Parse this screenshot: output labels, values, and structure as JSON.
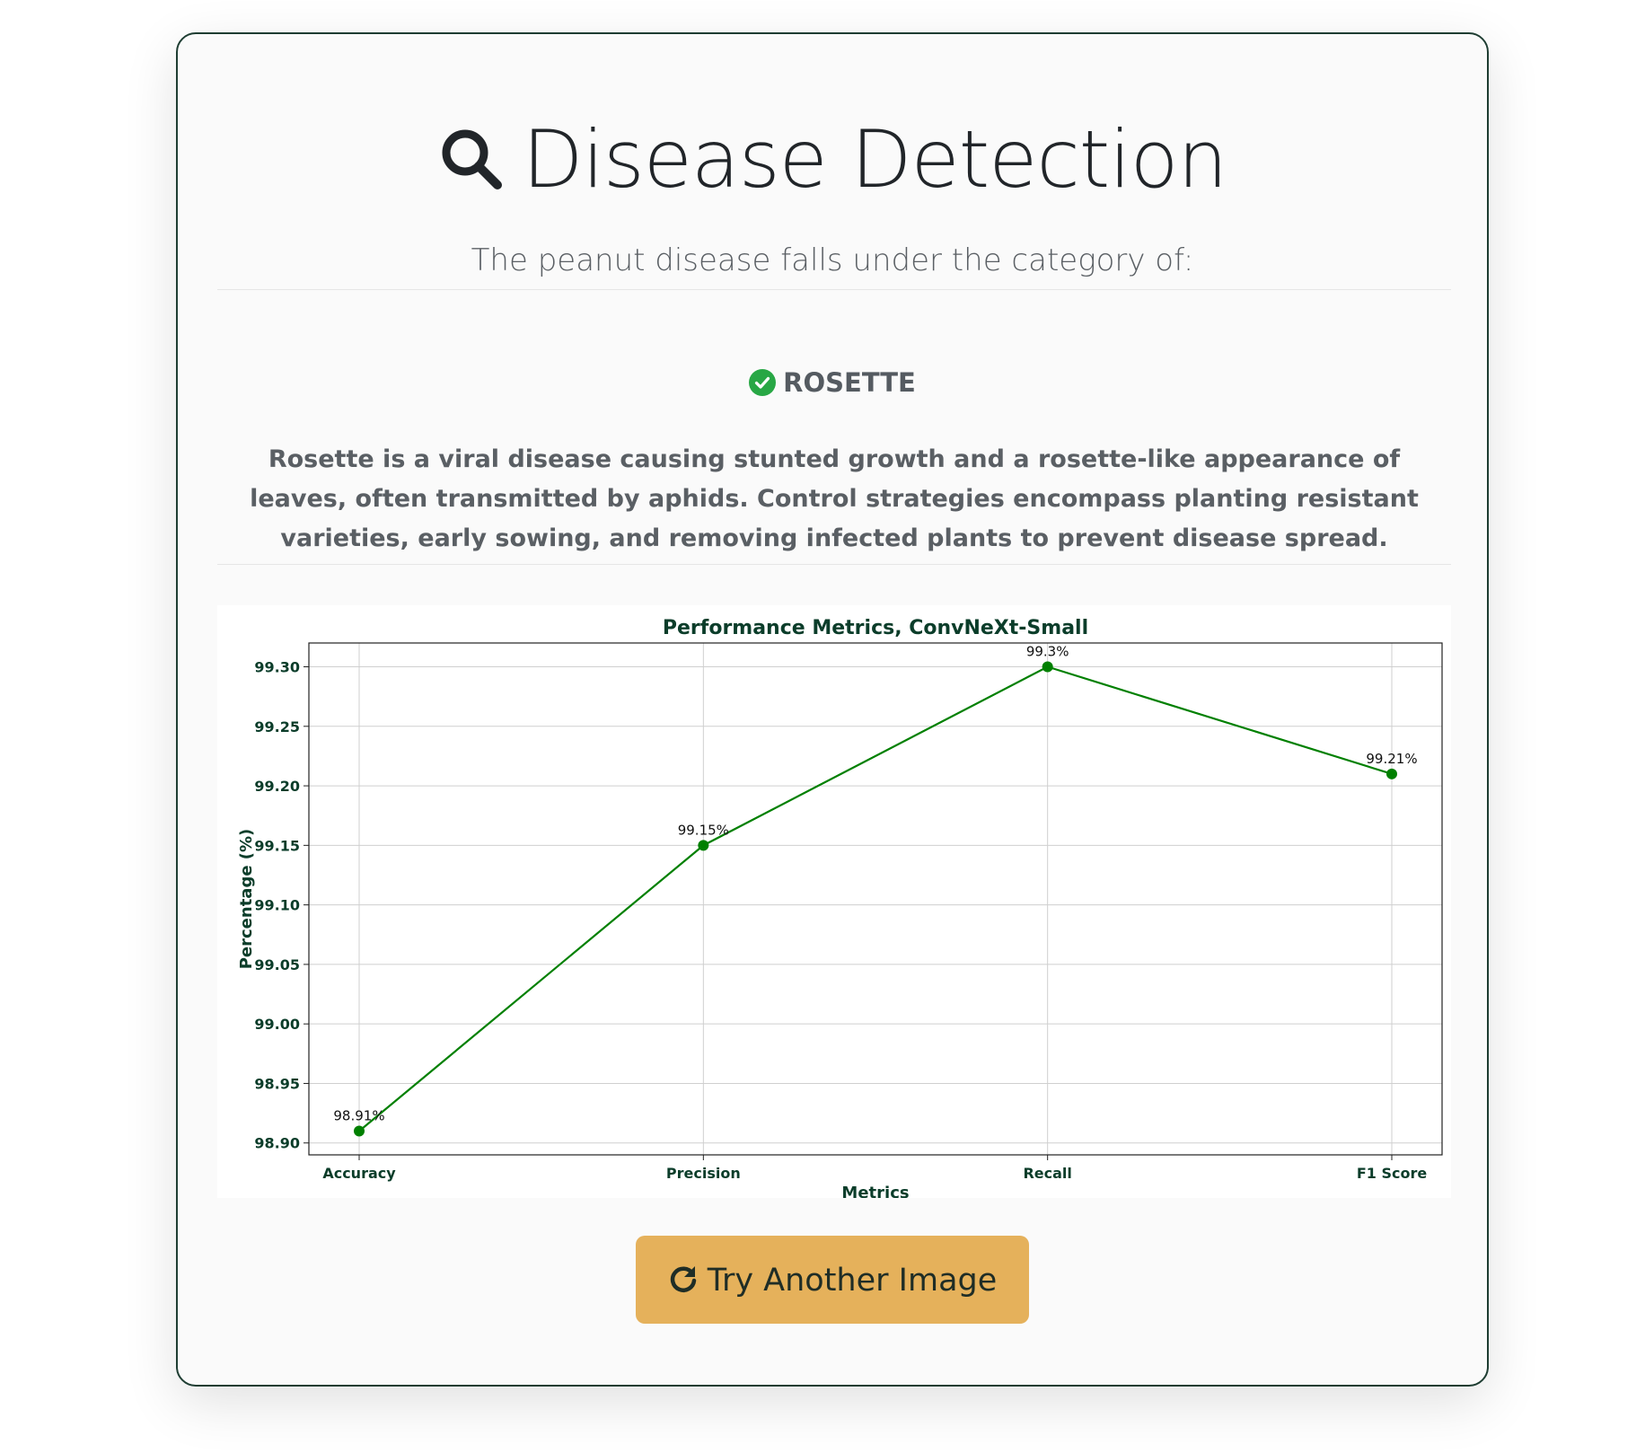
{
  "header": {
    "title": "Disease Detection",
    "title_icon": "search-icon",
    "subtitle": "The peanut disease falls under the category of:"
  },
  "result": {
    "label": "ROSETTE",
    "icon": "check-circle-icon",
    "icon_color": "#28a745",
    "description": "Rosette is a viral disease causing stunted growth and a rosette-like appearance of leaves, often transmitted by aphids. Control strategies encompass planting resistant varieties, early sowing, and removing infected plants to prevent disease spread."
  },
  "chart_data": {
    "type": "line",
    "title": "Performance Metrics, ConvNeXt-Small",
    "xlabel": "Metrics",
    "ylabel": "Percentage (%)",
    "categories": [
      "Accuracy",
      "Precision",
      "Recall",
      "F1 Score"
    ],
    "values": [
      98.91,
      99.15,
      99.3,
      99.21
    ],
    "data_labels": [
      "98.91%",
      "99.15%",
      "99.3%",
      "99.21%"
    ],
    "yticks": [
      "98.90",
      "98.95",
      "99.00",
      "99.05",
      "99.10",
      "99.15",
      "99.20",
      "99.25",
      "99.30"
    ],
    "ylim": [
      98.89,
      99.32
    ],
    "grid": true,
    "line_color": "#008000",
    "text_color": "#0b3d2a"
  },
  "button": {
    "label": "Try Another Image",
    "icon": "refresh-icon",
    "color": "#e5b15b"
  }
}
